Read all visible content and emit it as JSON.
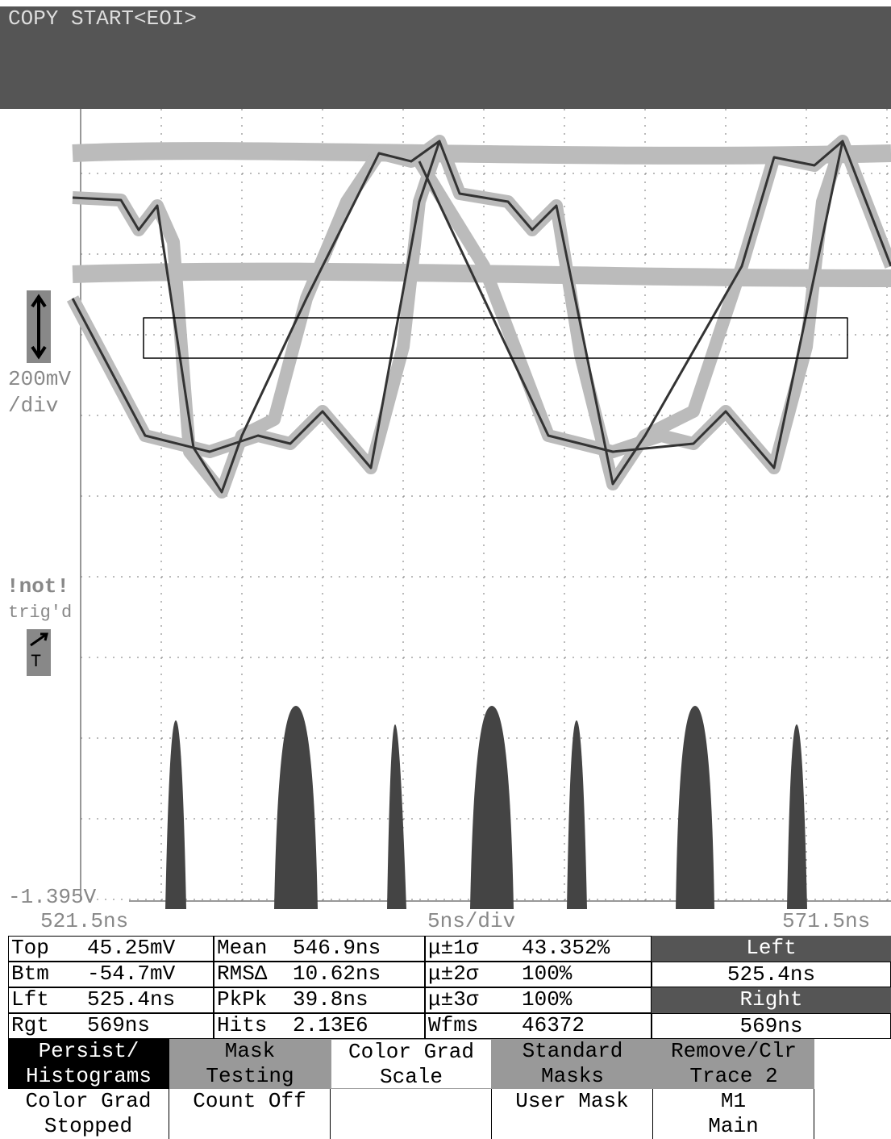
{
  "header": {
    "status": "COPY START<EOI>"
  },
  "scope": {
    "volts_per_div": "200mV",
    "volts_per_div_unit": "/div",
    "trigger_status": "!not!",
    "trigger_state": "trig'd",
    "trigger_icon": "T",
    "bottom_level": "-1.395V",
    "time_start": "521.5ns",
    "time_per_div": "5ns/div",
    "time_end": "571.5ns"
  },
  "measurements": {
    "rows": [
      [
        "Top",
        "45.25mV",
        "Mean",
        "546.9ns",
        "μ±1σ",
        "43.352%"
      ],
      [
        "Btm",
        "-54.7mV",
        "RMSΔ",
        "10.62ns",
        "μ±2σ",
        "100%"
      ],
      [
        "Lft",
        "525.4ns",
        "PkPk",
        "39.8ns",
        "μ±3σ",
        "100%"
      ],
      [
        "Rgt",
        "569ns",
        "Hits",
        "2.13E6",
        "Wfms",
        "46372"
      ]
    ]
  },
  "window": {
    "left_label": "Left",
    "left_value": "525.4ns",
    "right_label": "Right",
    "right_value": "569ns"
  },
  "menu": {
    "buttons": [
      {
        "label": [
          "Persist/",
          "Histograms"
        ],
        "setting": [
          "Color Grad",
          "Stopped"
        ]
      },
      {
        "label": [
          "Mask",
          "Testing"
        ],
        "setting": [
          "Count Off"
        ]
      },
      {
        "label": [
          "Color Grad",
          "Scale"
        ]
      },
      {
        "label": [
          "Standard",
          "Masks"
        ],
        "setting": [
          "User Mask"
        ]
      },
      {
        "label": [
          "Remove/Clr",
          "Trace 2"
        ],
        "setting": [
          "M1",
          "Main"
        ]
      }
    ]
  }
}
